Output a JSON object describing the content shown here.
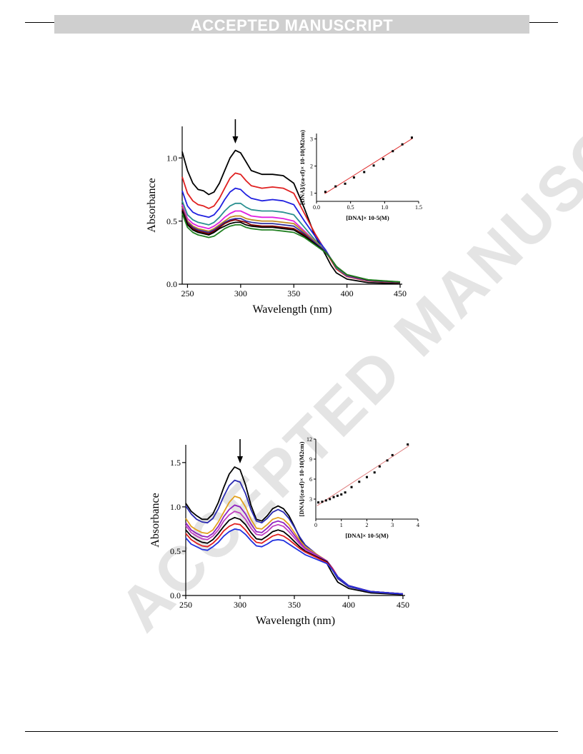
{
  "header": {
    "banner_text": "ACCEPTED MANUSCRIPT"
  },
  "watermark": {
    "text": "ACCEPTED MANUSCRIPT"
  },
  "chart_data": [
    {
      "type": "line",
      "xlabel": "Wavelength (nm)",
      "ylabel": "Absorbance",
      "xlim": [
        245,
        452
      ],
      "ylim": [
        0,
        1.25
      ],
      "xticks": [
        250,
        300,
        350,
        400,
        450
      ],
      "yticks": [
        0.0,
        0.5,
        1.0
      ],
      "xtick_labels": [
        "250",
        "300",
        "350",
        "400",
        "450"
      ],
      "ytick_labels": [
        "0.0",
        "0.5",
        "1.0"
      ],
      "annotation": "downward arrow at ~295 nm (decreasing absorbance)",
      "x": [
        245,
        250,
        255,
        260,
        265,
        270,
        275,
        280,
        285,
        290,
        295,
        300,
        305,
        310,
        320,
        330,
        340,
        350,
        360,
        370,
        380,
        385,
        390,
        400,
        420,
        450
      ],
      "series": [
        {
          "color": "#000000",
          "values": [
            1.05,
            0.9,
            0.8,
            0.75,
            0.74,
            0.71,
            0.73,
            0.8,
            0.9,
            1.0,
            1.06,
            1.04,
            0.97,
            0.9,
            0.87,
            0.87,
            0.86,
            0.8,
            0.6,
            0.38,
            0.23,
            0.15,
            0.09,
            0.04,
            0.012,
            0.004
          ]
        },
        {
          "color": "#e02020",
          "values": [
            0.85,
            0.72,
            0.66,
            0.63,
            0.62,
            0.6,
            0.62,
            0.68,
            0.76,
            0.84,
            0.88,
            0.87,
            0.82,
            0.78,
            0.76,
            0.77,
            0.76,
            0.72,
            0.56,
            0.4,
            0.26,
            0.19,
            0.12,
            0.06,
            0.025,
            0.012
          ]
        },
        {
          "color": "#2020e0",
          "values": [
            0.74,
            0.62,
            0.57,
            0.55,
            0.54,
            0.53,
            0.55,
            0.6,
            0.67,
            0.73,
            0.76,
            0.75,
            0.71,
            0.68,
            0.66,
            0.67,
            0.66,
            0.63,
            0.5,
            0.38,
            0.27,
            0.2,
            0.13,
            0.065,
            0.028,
            0.014
          ]
        },
        {
          "color": "#2a9090",
          "values": [
            0.66,
            0.55,
            0.51,
            0.49,
            0.48,
            0.47,
            0.49,
            0.53,
            0.58,
            0.62,
            0.64,
            0.64,
            0.61,
            0.59,
            0.58,
            0.58,
            0.57,
            0.55,
            0.45,
            0.35,
            0.26,
            0.2,
            0.13,
            0.068,
            0.03,
            0.015
          ]
        },
        {
          "color": "#e020e0",
          "values": [
            0.63,
            0.52,
            0.48,
            0.46,
            0.45,
            0.44,
            0.46,
            0.49,
            0.53,
            0.56,
            0.58,
            0.58,
            0.56,
            0.54,
            0.53,
            0.53,
            0.52,
            0.5,
            0.42,
            0.34,
            0.26,
            0.2,
            0.14,
            0.07,
            0.031,
            0.016
          ]
        },
        {
          "color": "#c08a20",
          "values": [
            0.61,
            0.5,
            0.46,
            0.44,
            0.43,
            0.42,
            0.44,
            0.47,
            0.5,
            0.53,
            0.54,
            0.54,
            0.52,
            0.51,
            0.5,
            0.5,
            0.49,
            0.48,
            0.41,
            0.34,
            0.26,
            0.2,
            0.14,
            0.072,
            0.032,
            0.016
          ]
        },
        {
          "color": "#3030a0",
          "values": [
            0.6,
            0.49,
            0.45,
            0.43,
            0.42,
            0.41,
            0.43,
            0.46,
            0.49,
            0.51,
            0.52,
            0.52,
            0.5,
            0.49,
            0.48,
            0.48,
            0.47,
            0.46,
            0.4,
            0.33,
            0.26,
            0.2,
            0.14,
            0.073,
            0.032,
            0.016
          ]
        },
        {
          "color": "#800000",
          "values": [
            0.59,
            0.48,
            0.44,
            0.42,
            0.41,
            0.4,
            0.42,
            0.45,
            0.48,
            0.5,
            0.51,
            0.5,
            0.49,
            0.47,
            0.46,
            0.46,
            0.45,
            0.44,
            0.39,
            0.32,
            0.25,
            0.2,
            0.14,
            0.074,
            0.033,
            0.017
          ]
        },
        {
          "color": "#000000",
          "values": [
            0.58,
            0.47,
            0.43,
            0.41,
            0.4,
            0.39,
            0.41,
            0.44,
            0.46,
            0.48,
            0.49,
            0.49,
            0.47,
            0.46,
            0.45,
            0.45,
            0.44,
            0.43,
            0.38,
            0.32,
            0.25,
            0.2,
            0.14,
            0.075,
            0.034,
            0.017
          ]
        },
        {
          "color": "#208020",
          "values": [
            0.56,
            0.45,
            0.41,
            0.39,
            0.38,
            0.37,
            0.38,
            0.41,
            0.44,
            0.46,
            0.47,
            0.47,
            0.45,
            0.44,
            0.43,
            0.43,
            0.42,
            0.41,
            0.37,
            0.31,
            0.25,
            0.2,
            0.14,
            0.076,
            0.035,
            0.018
          ]
        }
      ],
      "inset": {
        "type": "scatter",
        "xlabel": "[DNA]× 10-5(M)",
        "ylabel": "[DNA]/(εa-εf)× 10-10(M2cm)",
        "xlim": [
          0,
          1.5
        ],
        "ylim": [
          0.7,
          3.2
        ],
        "xticks": [
          0.0,
          0.5,
          1.0,
          1.5
        ],
        "yticks": [
          1,
          2,
          3
        ],
        "xtick_labels": [
          "0.0",
          "0.5",
          "1.0",
          "1.5"
        ],
        "ytick_labels": [
          "1",
          "2",
          "3"
        ],
        "x": [
          0.13,
          0.28,
          0.42,
          0.55,
          0.7,
          0.84,
          0.98,
          1.12,
          1.26,
          1.4
        ],
        "y": [
          1.05,
          1.25,
          1.35,
          1.58,
          1.78,
          2.02,
          2.26,
          2.55,
          2.8,
          3.05
        ],
        "fit_line": {
          "x": [
            0.12,
            1.41
          ],
          "y": [
            0.98,
            3.02
          ],
          "color": "#e03030"
        }
      }
    },
    {
      "type": "line",
      "xlabel": "Wavelength (nm)",
      "ylabel": "Absorbance",
      "xlim": [
        250,
        452
      ],
      "ylim": [
        0,
        1.7
      ],
      "xticks": [
        250,
        300,
        350,
        400,
        450
      ],
      "yticks": [
        0.0,
        0.5,
        1.0,
        1.5
      ],
      "xtick_labels": [
        "250",
        "300",
        "350",
        "400",
        "450"
      ],
      "ytick_labels": [
        "0.0",
        "0.5",
        "1.0",
        "1.5"
      ],
      "annotation": "downward arrow at ~300 nm (decreasing absorbance)",
      "x": [
        250,
        255,
        260,
        265,
        270,
        275,
        280,
        285,
        290,
        295,
        300,
        305,
        310,
        315,
        320,
        325,
        330,
        335,
        340,
        345,
        350,
        355,
        360,
        370,
        380,
        385,
        390,
        400,
        420,
        450
      ],
      "series": [
        {
          "color": "#000000",
          "values": [
            1.04,
            0.95,
            0.9,
            0.86,
            0.86,
            0.92,
            1.05,
            1.22,
            1.37,
            1.45,
            1.42,
            1.25,
            1.02,
            0.86,
            0.84,
            0.9,
            0.98,
            1.01,
            0.98,
            0.9,
            0.78,
            0.65,
            0.55,
            0.45,
            0.36,
            0.25,
            0.15,
            0.08,
            0.03,
            0.01
          ]
        },
        {
          "color": "#2a2ab0",
          "values": [
            1.01,
            0.92,
            0.86,
            0.83,
            0.82,
            0.87,
            0.98,
            1.12,
            1.24,
            1.3,
            1.28,
            1.15,
            0.97,
            0.84,
            0.82,
            0.87,
            0.94,
            0.97,
            0.94,
            0.87,
            0.77,
            0.66,
            0.57,
            0.47,
            0.38,
            0.29,
            0.19,
            0.1,
            0.04,
            0.015
          ]
        },
        {
          "color": "#e0a020",
          "values": [
            0.87,
            0.78,
            0.74,
            0.71,
            0.7,
            0.74,
            0.83,
            0.94,
            1.05,
            1.12,
            1.1,
            1.0,
            0.86,
            0.76,
            0.75,
            0.8,
            0.86,
            0.88,
            0.86,
            0.8,
            0.71,
            0.62,
            0.55,
            0.47,
            0.39,
            0.31,
            0.21,
            0.11,
            0.045,
            0.018
          ]
        },
        {
          "color": "#9020c0",
          "values": [
            0.82,
            0.74,
            0.7,
            0.67,
            0.66,
            0.7,
            0.78,
            0.89,
            0.97,
            1.02,
            1.0,
            0.92,
            0.81,
            0.72,
            0.71,
            0.76,
            0.82,
            0.84,
            0.82,
            0.76,
            0.68,
            0.6,
            0.53,
            0.46,
            0.39,
            0.31,
            0.21,
            0.11,
            0.045,
            0.018
          ]
        },
        {
          "color": "#c040c0",
          "values": [
            0.79,
            0.71,
            0.67,
            0.64,
            0.63,
            0.67,
            0.74,
            0.84,
            0.91,
            0.95,
            0.93,
            0.86,
            0.76,
            0.69,
            0.68,
            0.72,
            0.78,
            0.8,
            0.78,
            0.72,
            0.65,
            0.58,
            0.52,
            0.45,
            0.38,
            0.31,
            0.21,
            0.11,
            0.045,
            0.018
          ]
        },
        {
          "color": "#000000",
          "values": [
            0.74,
            0.67,
            0.63,
            0.6,
            0.59,
            0.63,
            0.7,
            0.78,
            0.85,
            0.88,
            0.86,
            0.8,
            0.71,
            0.64,
            0.63,
            0.67,
            0.72,
            0.74,
            0.72,
            0.67,
            0.61,
            0.55,
            0.5,
            0.44,
            0.38,
            0.3,
            0.21,
            0.11,
            0.045,
            0.018
          ]
        },
        {
          "color": "#e02020",
          "values": [
            0.7,
            0.63,
            0.59,
            0.56,
            0.55,
            0.59,
            0.65,
            0.73,
            0.78,
            0.81,
            0.8,
            0.74,
            0.66,
            0.6,
            0.59,
            0.63,
            0.67,
            0.69,
            0.67,
            0.63,
            0.58,
            0.53,
            0.49,
            0.43,
            0.37,
            0.3,
            0.21,
            0.11,
            0.045,
            0.018
          ]
        },
        {
          "color": "#2030e0",
          "values": [
            0.65,
            0.58,
            0.55,
            0.52,
            0.51,
            0.55,
            0.6,
            0.67,
            0.72,
            0.75,
            0.74,
            0.69,
            0.62,
            0.56,
            0.55,
            0.58,
            0.62,
            0.63,
            0.62,
            0.58,
            0.54,
            0.5,
            0.46,
            0.41,
            0.36,
            0.29,
            0.21,
            0.11,
            0.045,
            0.018
          ]
        }
      ],
      "inset": {
        "type": "scatter",
        "xlabel": "[DNA]× 10-5(M)",
        "ylabel": "[DNA]/(εa-εf)× 10-10(M2cm)",
        "xlim": [
          0,
          4
        ],
        "ylim": [
          0,
          12
        ],
        "xticks": [
          0,
          1,
          2,
          3,
          4
        ],
        "yticks": [
          3,
          6,
          9,
          12
        ],
        "xtick_labels": [
          "0",
          "1",
          "2",
          "3",
          "4"
        ],
        "ytick_labels": [
          "3",
          "6",
          "9",
          "12"
        ],
        "x": [
          0.1,
          0.25,
          0.4,
          0.55,
          0.7,
          0.85,
          1.0,
          1.15,
          1.4,
          1.7,
          2.0,
          2.3,
          2.5,
          2.8,
          3.0,
          3.6
        ],
        "y": [
          2.5,
          2.6,
          2.8,
          3.0,
          3.3,
          3.5,
          3.7,
          4.0,
          4.8,
          5.6,
          6.3,
          7.0,
          7.9,
          8.8,
          9.6,
          11.2
        ],
        "fit_line": {
          "x": [
            0.05,
            3.65
          ],
          "y": [
            2.0,
            11.0
          ],
          "color": "#e08080"
        }
      }
    }
  ]
}
